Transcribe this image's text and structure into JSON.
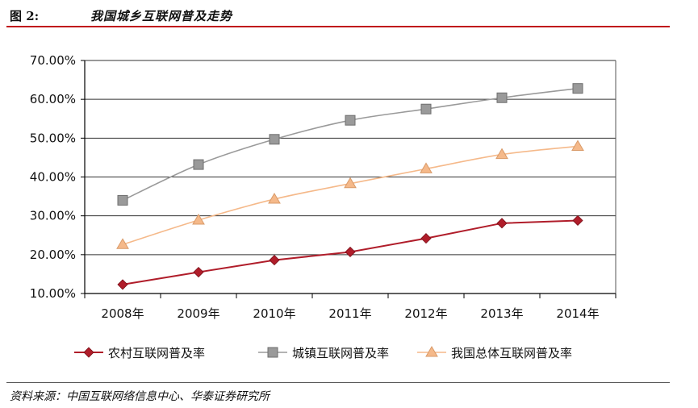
{
  "header": {
    "figure_label": "图 2:",
    "title": "我国城乡互联网普及走势"
  },
  "source": "资料来源：中国互联网络信息中心、华泰证券研究所",
  "colors": {
    "rural": "#b01d2a",
    "urban": "#9a9a9a",
    "total": "#f5b98a",
    "accent": "#c0141b"
  },
  "chart_data": {
    "type": "line",
    "categories": [
      "2008年",
      "2009年",
      "2010年",
      "2011年",
      "2012年",
      "2013年",
      "2014年"
    ],
    "yticks": [
      "10.00%",
      "20.00%",
      "30.00%",
      "40.00%",
      "50.00%",
      "60.00%",
      "70.00%"
    ],
    "ylim": [
      10,
      70
    ],
    "grid": true,
    "legend_position": "bottom",
    "series": [
      {
        "name": "农村互联网普及率",
        "marker": "diamond",
        "values": [
          12.3,
          15.5,
          18.6,
          20.7,
          24.2,
          28.1,
          28.8
        ]
      },
      {
        "name": "城镇互联网普及率",
        "marker": "square",
        "values": [
          34.0,
          43.2,
          49.7,
          54.6,
          57.5,
          60.4,
          62.8
        ]
      },
      {
        "name": "我国总体互联网普及率",
        "marker": "triangle",
        "values": [
          22.6,
          28.9,
          34.3,
          38.3,
          42.1,
          45.8,
          47.9
        ]
      }
    ]
  }
}
